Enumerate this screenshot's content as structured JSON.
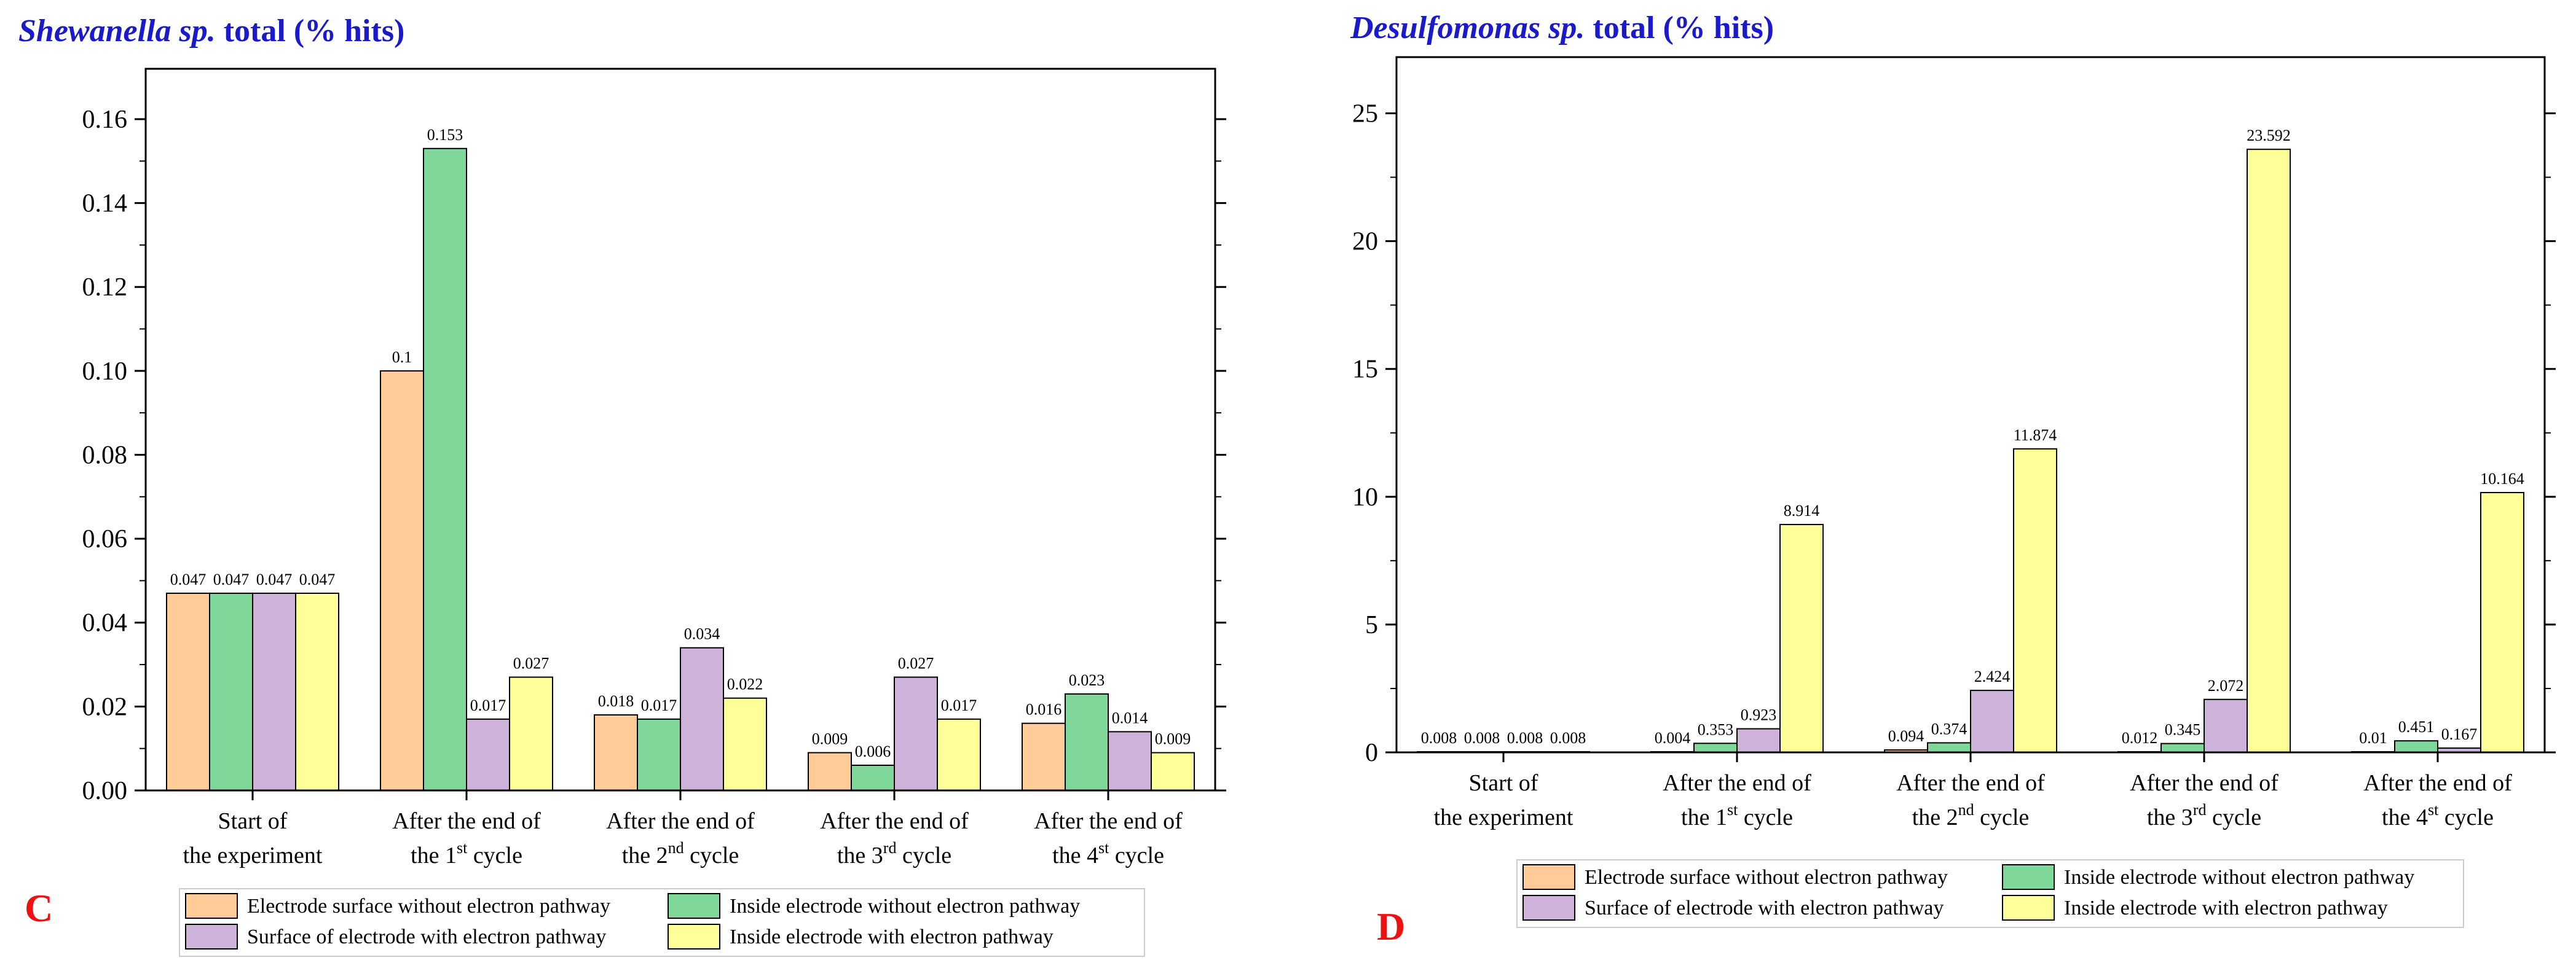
{
  "colors": {
    "series": [
      "#FFCC99",
      "#7FD89A",
      "#CDB3DA",
      "#FFFF99"
    ],
    "title": "#1A1ACC",
    "panel_label": "#EE1111",
    "axis": "#000000"
  },
  "chart_data": [
    {
      "type": "bar",
      "panel_label": "C",
      "title_italic": "Shewanella sp.",
      "title_rest": " total (% hits)",
      "ylim": [
        0,
        0.172
      ],
      "yticks": [
        0,
        0.02,
        0.04,
        0.06,
        0.08,
        0.1,
        0.12,
        0.14,
        0.16
      ],
      "ytick_labels": [
        "0.00",
        "0.02",
        "0.04",
        "0.06",
        "0.08",
        "0.10",
        "0.12",
        "0.14",
        "0.16"
      ],
      "categories": [
        {
          "line1": "Start of",
          "line2": "the experiment",
          "sup": ""
        },
        {
          "line1": "After the end of",
          "line2": "the 1",
          "sup": "st",
          "suffix": " cycle"
        },
        {
          "line1": "After the end of",
          "line2": "the 2",
          "sup": "nd",
          "suffix": " cycle"
        },
        {
          "line1": "After the end of",
          "line2": "the 3",
          "sup": "rd",
          "suffix": " cycle"
        },
        {
          "line1": "After the end of",
          "line2": "the 4",
          "sup": "st",
          "suffix": " cycle"
        }
      ],
      "series": [
        {
          "name": "Electrode surface without electron pathway",
          "values": [
            0.047,
            0.1,
            0.018,
            0.009,
            0.016
          ],
          "labels": [
            "0.047",
            "0.1",
            "0.018",
            "0.009",
            "0.016"
          ]
        },
        {
          "name": "Inside electrode without electron pathway",
          "values": [
            0.047,
            0.153,
            0.017,
            0.006,
            0.023
          ],
          "labels": [
            "0.047",
            "0.153",
            "0.017",
            "0.006",
            "0.023"
          ]
        },
        {
          "name": "Surface of electrode with electron pathway",
          "values": [
            0.047,
            0.017,
            0.034,
            0.027,
            0.014
          ],
          "labels": [
            "0.047",
            "0.017",
            "0.034",
            "0.027",
            "0.014"
          ]
        },
        {
          "name": "Inside electrode with electron pathway",
          "values": [
            0.047,
            0.027,
            0.022,
            0.017,
            0.009
          ],
          "labels": [
            "0.047",
            "0.027",
            "0.022",
            "0.017",
            "0.009"
          ]
        }
      ]
    },
    {
      "type": "bar",
      "panel_label": "D",
      "title_italic": "Desulfomonas sp.",
      "title_rest": " total (% hits)",
      "ylim": [
        0,
        27.2
      ],
      "yticks": [
        0,
        5,
        10,
        15,
        20,
        25
      ],
      "ytick_labels": [
        "0",
        "5",
        "10",
        "15",
        "20",
        "25"
      ],
      "categories": [
        {
          "line1": "Start of",
          "line2": "the experiment",
          "sup": ""
        },
        {
          "line1": "After the end of",
          "line2": "the 1",
          "sup": "st",
          "suffix": " cycle"
        },
        {
          "line1": "After the end of",
          "line2": "the 2",
          "sup": "nd",
          "suffix": " cycle"
        },
        {
          "line1": "After the end of",
          "line2": "the 3",
          "sup": "rd",
          "suffix": " cycle"
        },
        {
          "line1": "After the end of",
          "line2": "the 4",
          "sup": "st",
          "suffix": " cycle"
        }
      ],
      "series": [
        {
          "name": "Electrode surface without electron pathway",
          "values": [
            0.008,
            0.004,
            0.094,
            0.012,
            0.01
          ],
          "labels": [
            "0.008",
            "0.004",
            "0.094",
            "0.012",
            "0.01"
          ]
        },
        {
          "name": "Inside electrode without electron pathway",
          "values": [
            0.008,
            0.353,
            0.374,
            0.345,
            0.451
          ],
          "labels": [
            "0.008",
            "0.353",
            "0.374",
            "0.345",
            "0.451"
          ]
        },
        {
          "name": "Surface of electrode with electron pathway",
          "values": [
            0.008,
            0.923,
            2.424,
            2.072,
            0.167
          ],
          "labels": [
            "0.008",
            "0.923",
            "2.424",
            "2.072",
            "0.167"
          ]
        },
        {
          "name": "Inside electrode with electron pathway",
          "values": [
            0.008,
            8.914,
            11.874,
            23.592,
            10.164
          ],
          "labels": [
            "0.008",
            "8.914",
            "11.874",
            "23.592",
            "10.164"
          ]
        }
      ]
    }
  ]
}
